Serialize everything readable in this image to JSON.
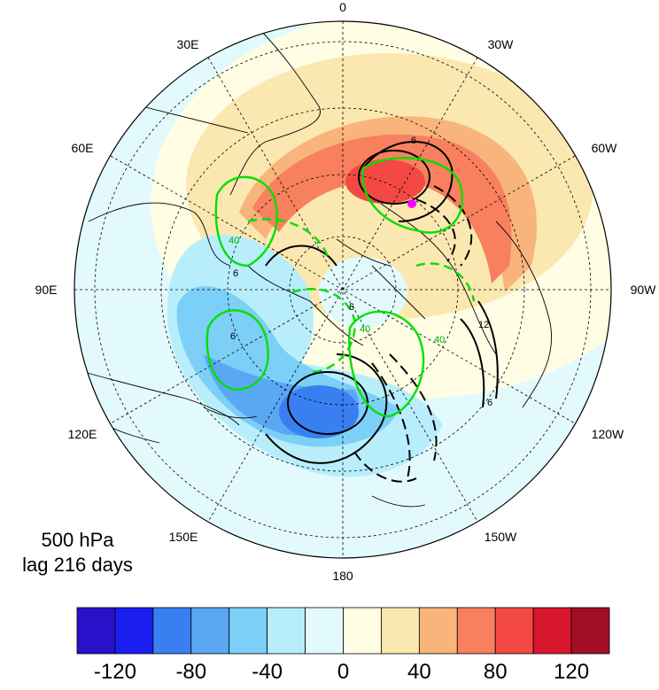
{
  "title": {
    "level": "500 hPa",
    "lag": "lag 216 days"
  },
  "longitude_labels": [
    "0",
    "30W",
    "60W",
    "90W",
    "120W",
    "150W",
    "180",
    "150E",
    "120E",
    "90E",
    "60E",
    "30E"
  ],
  "colorbar": {
    "colors": [
      "#2a10c8",
      "#1a1ef0",
      "#3a7ff2",
      "#5aa8f4",
      "#7ccff7",
      "#b8eefb",
      "#e3fafd",
      "#fffde3",
      "#fbe7b0",
      "#f9b47c",
      "#f8805e",
      "#f44942",
      "#d8172f",
      "#a20f25"
    ],
    "tick_labels": [
      "-120",
      "-80",
      "-40",
      "0",
      "40",
      "80",
      "120"
    ],
    "tick_values": [
      -120,
      -80,
      -40,
      0,
      40,
      80,
      120
    ]
  },
  "marker_color": "#ff00ff",
  "contour_line_labels": [
    "6",
    "6",
    "6",
    "12",
    "40",
    "40",
    "40",
    "6",
    "6"
  ]
}
